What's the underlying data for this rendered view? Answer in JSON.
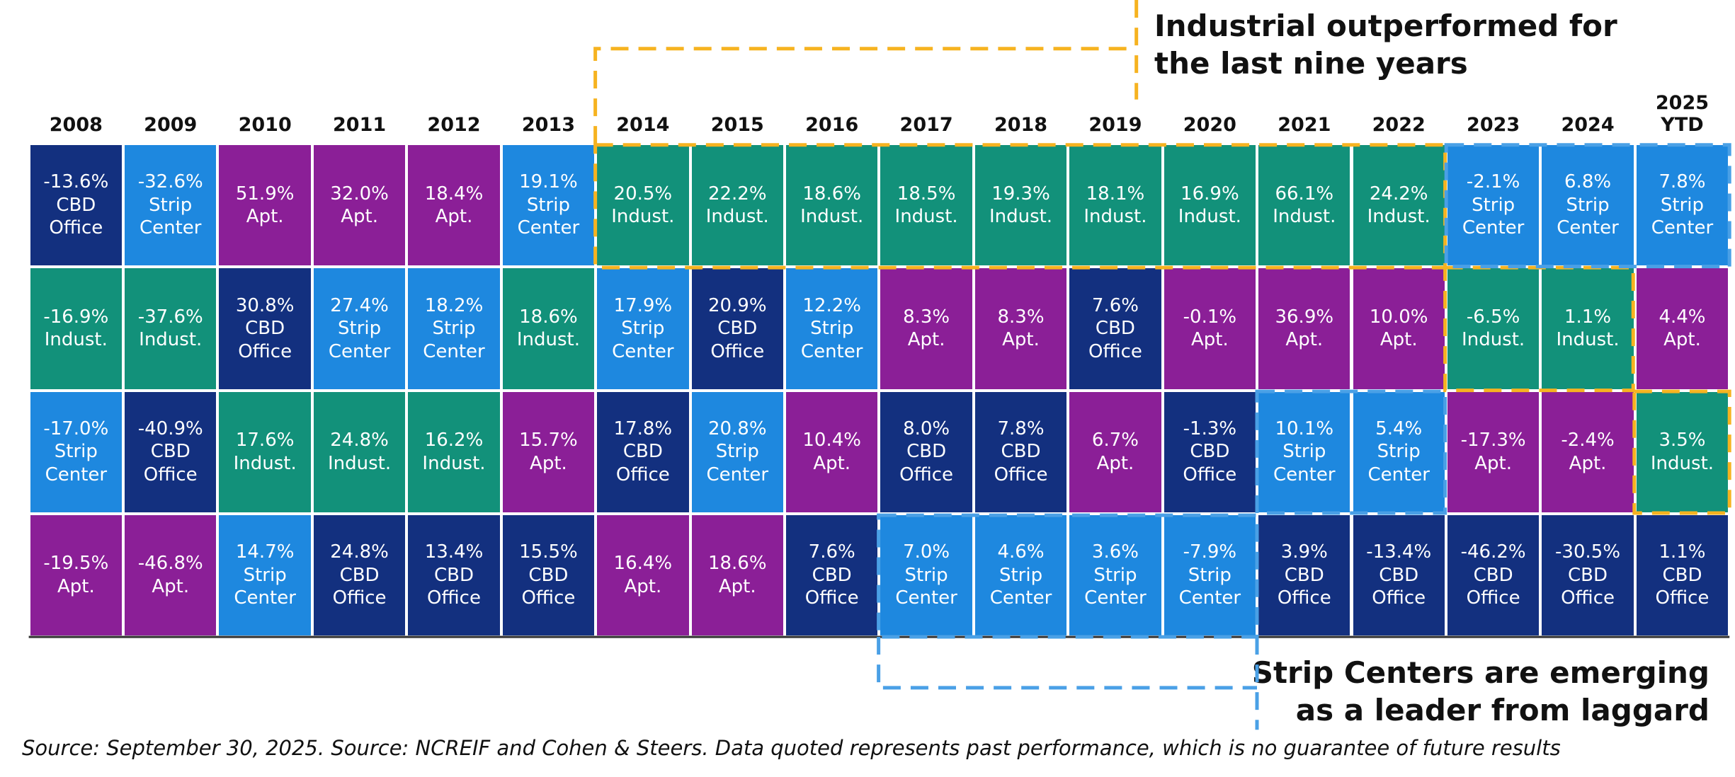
{
  "header": {
    "years": [
      "2008",
      "2009",
      "2010",
      "2011",
      "2012",
      "2013",
      "2014",
      "2015",
      "2016",
      "2017",
      "2018",
      "2019",
      "2020",
      "2021",
      "2022",
      "2023",
      "2024",
      "2025 YTD"
    ]
  },
  "sector_colors": {
    "CBD Office": "#13307f",
    "Strip Center": "#1e88df",
    "Apt.": "#8b1f97",
    "Indust.": "#12917a"
  },
  "table": {
    "rows": [
      [
        [
          "-13.6%",
          "CBD Office"
        ],
        [
          "-32.6%",
          "Strip Center"
        ],
        [
          "51.9%",
          "Apt."
        ],
        [
          "32.0%",
          "Apt."
        ],
        [
          "18.4%",
          "Apt."
        ],
        [
          "19.1%",
          "Strip Center"
        ],
        [
          "20.5%",
          "Indust."
        ],
        [
          "22.2%",
          "Indust."
        ],
        [
          "18.6%",
          "Indust."
        ],
        [
          "18.5%",
          "Indust."
        ],
        [
          "19.3%",
          "Indust."
        ],
        [
          "18.1%",
          "Indust."
        ],
        [
          "16.9%",
          "Indust."
        ],
        [
          "66.1%",
          "Indust."
        ],
        [
          "24.2%",
          "Indust."
        ],
        [
          "-2.1%",
          "Strip Center"
        ],
        [
          "6.8%",
          "Strip Center"
        ],
        [
          "7.8%",
          "Strip Center"
        ]
      ],
      [
        [
          "-16.9%",
          "Indust."
        ],
        [
          "-37.6%",
          "Indust."
        ],
        [
          "30.8%",
          "CBD Office"
        ],
        [
          "27.4%",
          "Strip Center"
        ],
        [
          "18.2%",
          "Strip Center"
        ],
        [
          "18.6%",
          "Indust."
        ],
        [
          "17.9%",
          "Strip Center"
        ],
        [
          "20.9%",
          "CBD Office"
        ],
        [
          "12.2%",
          "Strip Center"
        ],
        [
          "8.3%",
          "Apt."
        ],
        [
          "8.3%",
          "Apt."
        ],
        [
          "7.6%",
          "CBD Office"
        ],
        [
          "-0.1%",
          "Apt."
        ],
        [
          "36.9%",
          "Apt."
        ],
        [
          "10.0%",
          "Apt."
        ],
        [
          "-6.5%",
          "Indust."
        ],
        [
          "1.1%",
          "Indust."
        ],
        [
          "4.4%",
          "Apt."
        ]
      ],
      [
        [
          "-17.0%",
          "Strip Center"
        ],
        [
          "-40.9%",
          "CBD Office"
        ],
        [
          "17.6%",
          "Indust."
        ],
        [
          "24.8%",
          "Indust."
        ],
        [
          "16.2%",
          "Indust."
        ],
        [
          "15.7%",
          "Apt."
        ],
        [
          "17.8%",
          "CBD Office"
        ],
        [
          "20.8%",
          "Strip Center"
        ],
        [
          "10.4%",
          "Apt."
        ],
        [
          "8.0%",
          "CBD Office"
        ],
        [
          "7.8%",
          "CBD Office"
        ],
        [
          "6.7%",
          "Apt."
        ],
        [
          "-1.3%",
          "CBD Office"
        ],
        [
          "10.1%",
          "Strip Center"
        ],
        [
          "5.4%",
          "Strip Center"
        ],
        [
          "-17.3%",
          "Apt."
        ],
        [
          "-2.4%",
          "Apt."
        ],
        [
          "3.5%",
          "Indust."
        ]
      ],
      [
        [
          "-19.5%",
          "Apt."
        ],
        [
          "-46.8%",
          "Apt."
        ],
        [
          "14.7%",
          "Strip Center"
        ],
        [
          "24.8%",
          "CBD Office"
        ],
        [
          "13.4%",
          "CBD Office"
        ],
        [
          "15.5%",
          "CBD Office"
        ],
        [
          "16.4%",
          "Apt."
        ],
        [
          "18.6%",
          "Apt."
        ],
        [
          "7.6%",
          "CBD Office"
        ],
        [
          "7.0%",
          "Strip Center"
        ],
        [
          "4.6%",
          "Strip Center"
        ],
        [
          "3.6%",
          "Strip Center"
        ],
        [
          "-7.9%",
          "Strip Center"
        ],
        [
          "3.9%",
          "CBD Office"
        ],
        [
          "-13.4%",
          "CBD Office"
        ],
        [
          "-46.2%",
          "CBD Office"
        ],
        [
          "-30.5%",
          "CBD Office"
        ],
        [
          "1.1%",
          "CBD Office"
        ]
      ]
    ]
  },
  "annotations": {
    "industrial": [
      "Industrial outperformed for",
      "the last nine years"
    ],
    "strip": [
      "Strip Centers are emerging",
      "as a leader from laggard"
    ]
  },
  "footer": {
    "source": "Source: September 30, 2025. Source: NCREIF and Cohen & Steers. Data quoted represents past performance, which is no guarantee of future results"
  }
}
